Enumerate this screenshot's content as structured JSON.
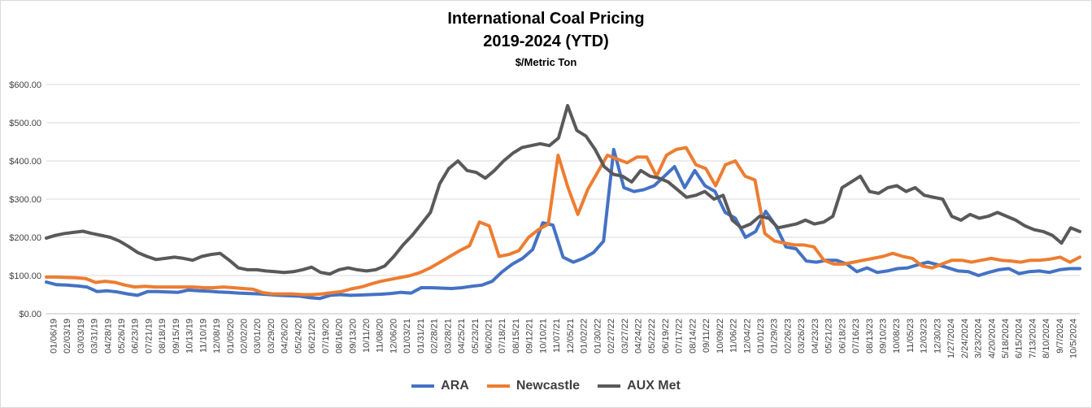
{
  "chart_data": {
    "type": "line",
    "title": "International Coal Pricing",
    "subtitle": "2019-2024 (YTD)",
    "unit_label": "$/Metric Ton",
    "ylim": [
      0,
      600
    ],
    "y_ticks": [
      "$0.00",
      "$100.00",
      "$200.00",
      "$300.00",
      "$400.00",
      "$500.00",
      "$600.00"
    ],
    "x_ticks": [
      "01/06/19",
      "02/03/19",
      "03/03/19",
      "03/31/19",
      "04/28/19",
      "05/26/19",
      "06/23/19",
      "07/21/19",
      "08/18/19",
      "09/15/19",
      "10/13/19",
      "11/10/19",
      "12/08/19",
      "01/05/20",
      "02/02/20",
      "03/01/20",
      "03/29/20",
      "04/26/20",
      "05/24/20",
      "06/21/20",
      "07/19/20",
      "08/16/20",
      "09/13/20",
      "10/11/20",
      "11/08/20",
      "12/06/20",
      "01/03/21",
      "01/31/21",
      "02/28/21",
      "03/28/21",
      "04/25/21",
      "05/23/21",
      "06/20/21",
      "07/18/21",
      "08/15/21",
      "09/12/21",
      "10/10/21",
      "11/07/21",
      "12/05/21",
      "01/02/22",
      "01/30/22",
      "02/27/22",
      "03/27/22",
      "04/24/22",
      "05/22/22",
      "06/19/22",
      "07/17/22",
      "08/14/22",
      "09/11/22",
      "10/09/22",
      "11/06/22",
      "12/04/22",
      "01/01/23",
      "01/29/23",
      "02/26/23",
      "03/26/23",
      "04/23/23",
      "05/21/23",
      "06/18/23",
      "07/16/23",
      "08/13/23",
      "09/10/23",
      "10/08/23",
      "11/05/23",
      "12/03/23",
      "12/30/23",
      "1/27/2024",
      "2/24/2024",
      "3/23/2024",
      "4/20/2024",
      "5/18/2024",
      "6/15/2024",
      "7/13/2024",
      "8/10/2024",
      "9/7/2024",
      "10/5/2024"
    ],
    "series": [
      {
        "name": "ARA",
        "color": "#4472c4",
        "values": [
          83,
          76,
          75,
          73,
          70,
          58,
          60,
          57,
          52,
          48,
          58,
          58,
          57,
          56,
          62,
          60,
          59,
          57,
          56,
          54,
          53,
          52,
          50,
          48,
          47,
          46,
          42,
          40,
          48,
          50,
          48,
          49,
          50,
          51,
          53,
          56,
          54,
          68,
          68,
          67,
          66,
          68,
          72,
          75,
          85,
          110,
          130,
          145,
          168,
          238,
          232,
          148,
          135,
          145,
          160,
          190,
          430,
          330,
          320,
          325,
          335,
          360,
          385,
          330,
          375,
          335,
          320,
          265,
          250,
          200,
          215,
          268,
          230,
          175,
          170,
          138,
          135,
          140,
          140,
          130,
          110,
          120,
          108,
          112,
          118,
          120,
          128,
          135,
          128,
          120,
          112,
          110,
          100,
          108,
          115,
          118,
          105,
          110,
          112,
          108,
          115,
          118,
          118
        ]
      },
      {
        "name": "Newcastle",
        "color": "#ed7d31",
        "values": [
          96,
          96,
          95,
          94,
          92,
          82,
          85,
          82,
          75,
          70,
          72,
          70,
          70,
          70,
          70,
          70,
          68,
          68,
          70,
          68,
          66,
          64,
          55,
          52,
          52,
          52,
          50,
          50,
          52,
          55,
          58,
          65,
          70,
          78,
          85,
          90,
          95,
          100,
          108,
          120,
          135,
          150,
          165,
          178,
          240,
          230,
          150,
          155,
          165,
          200,
          220,
          235,
          415,
          330,
          260,
          325,
          370,
          415,
          405,
          395,
          410,
          410,
          360,
          415,
          430,
          435,
          390,
          380,
          335,
          390,
          400,
          360,
          350,
          210,
          190,
          185,
          180,
          180,
          175,
          140,
          130,
          130,
          135,
          140,
          145,
          150,
          158,
          150,
          145,
          125,
          120,
          130,
          140,
          140,
          135,
          140,
          145,
          140,
          138,
          135,
          140,
          140,
          143,
          148,
          135,
          148
        ]
      },
      {
        "name": "AUX Met",
        "color": "#595959",
        "values": [
          198,
          205,
          210,
          213,
          216,
          210,
          205,
          200,
          190,
          176,
          160,
          150,
          142,
          145,
          148,
          145,
          140,
          150,
          155,
          158,
          140,
          120,
          115,
          115,
          112,
          110,
          108,
          110,
          115,
          122,
          108,
          104,
          115,
          120,
          115,
          112,
          115,
          125,
          150,
          180,
          205,
          235,
          265,
          340,
          380,
          400,
          375,
          370,
          355,
          375,
          400,
          420,
          435,
          440,
          445,
          440,
          460,
          545,
          480,
          465,
          430,
          385,
          365,
          360,
          345,
          375,
          360,
          355,
          345,
          325,
          305,
          310,
          320,
          300,
          310,
          245,
          225,
          235,
          255,
          250,
          225,
          230,
          235,
          245,
          235,
          240,
          255,
          330,
          345,
          360,
          320,
          315,
          330,
          335,
          320,
          330,
          310,
          305,
          300,
          255,
          245,
          260,
          250,
          255,
          265,
          255,
          245,
          230,
          220,
          215,
          205,
          185,
          225,
          215
        ]
      }
    ]
  },
  "legend": {
    "items": [
      "ARA",
      "Newcastle",
      "AUX Met"
    ]
  }
}
